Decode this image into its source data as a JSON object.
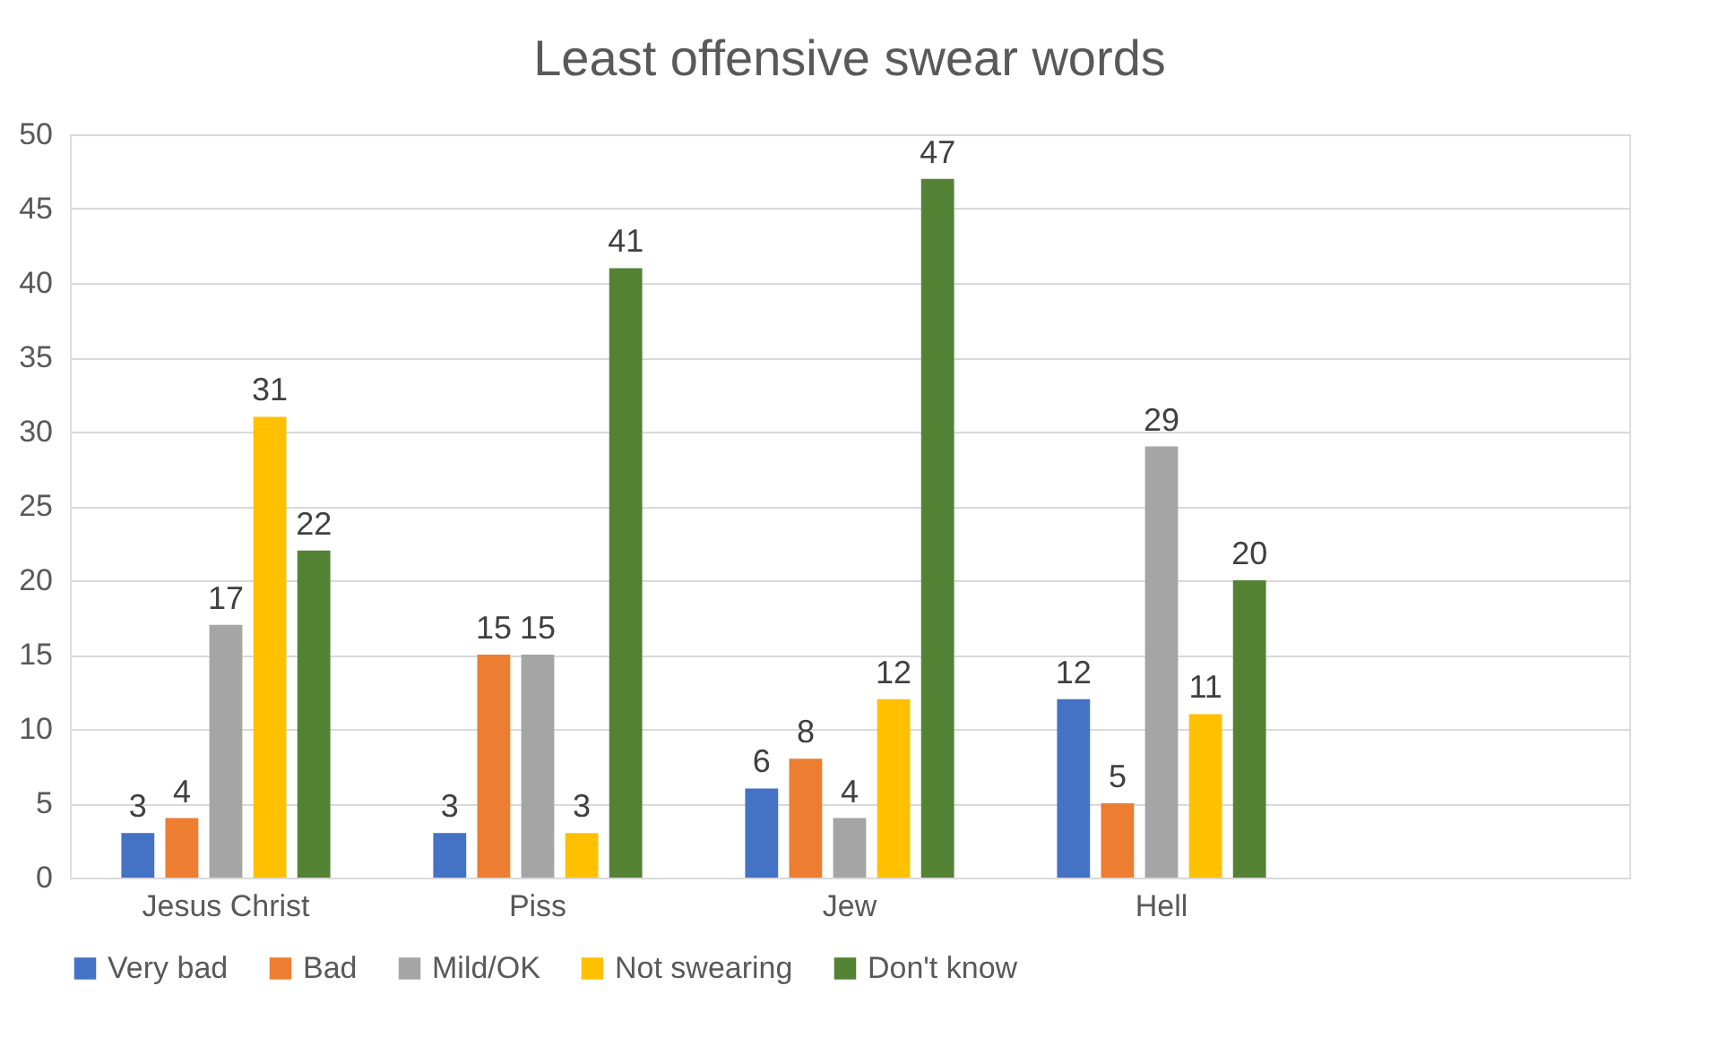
{
  "chart_data": {
    "type": "bar",
    "title": "Least offensive swear words",
    "categories": [
      "Jesus Christ",
      "Piss",
      "Jew",
      "Hell",
      null
    ],
    "series": [
      {
        "name": "Very bad",
        "color": "#4472c4",
        "values": [
          3,
          3,
          6,
          12,
          null
        ]
      },
      {
        "name": "Bad",
        "color": "#ed7d31",
        "values": [
          4,
          15,
          8,
          5,
          null
        ]
      },
      {
        "name": "Mild/OK",
        "color": "#a5a5a5",
        "values": [
          17,
          15,
          4,
          29,
          null
        ]
      },
      {
        "name": "Not swearing",
        "color": "#ffc000",
        "values": [
          31,
          3,
          12,
          11,
          null
        ]
      },
      {
        "name": "Don't know",
        "color": "#548235",
        "values": [
          22,
          41,
          47,
          20,
          null
        ]
      }
    ],
    "ylim": [
      0,
      50
    ],
    "yticks": [
      0,
      5,
      10,
      15,
      20,
      25,
      30,
      35,
      40,
      45,
      50
    ],
    "grid": "y",
    "legend": "bottom",
    "data_labels": true
  }
}
